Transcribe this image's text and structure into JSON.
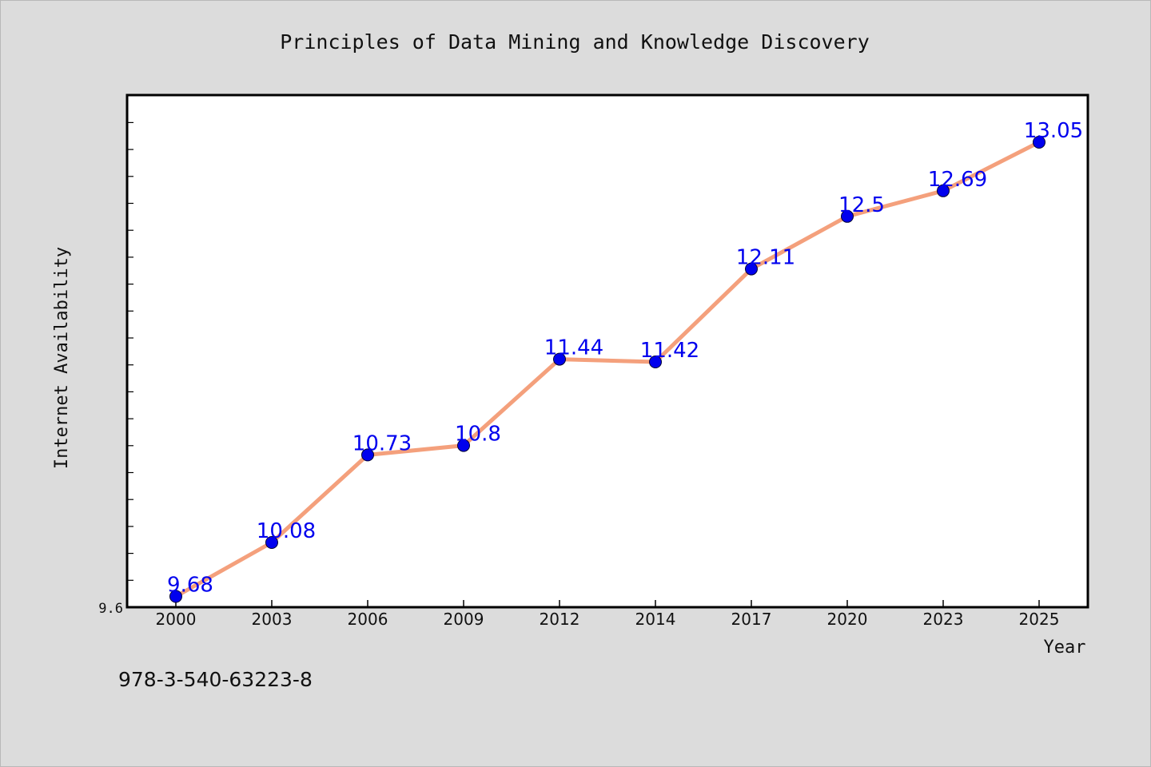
{
  "chart_data": {
    "type": "line",
    "title": "Principles of Data Mining and Knowledge Discovery",
    "xlabel": "Year",
    "ylabel": "Internet Availability",
    "categories": [
      "2000",
      "2003",
      "2006",
      "2009",
      "2012",
      "2014",
      "2017",
      "2020",
      "2023",
      "2025"
    ],
    "values": [
      9.68,
      10.08,
      10.73,
      10.8,
      11.44,
      11.42,
      12.11,
      12.5,
      12.69,
      13.05
    ],
    "data_labels": [
      "9.68",
      "10.08",
      "10.73",
      "10.8",
      "11.44",
      "11.42",
      "12.11",
      "12.5",
      "12.69",
      "13.05"
    ],
    "y_tick_labels": [
      "9.6"
    ],
    "ylim": [
      9.6,
      13.4
    ],
    "grid": false,
    "legend": "none",
    "colors": {
      "line": "#f4a07c",
      "marker": "#0000ee",
      "data_label": "#0000ee",
      "background": "#dcdcdc",
      "plot_area": "#ffffff"
    }
  },
  "isbn": "978-3-540-63223-8"
}
